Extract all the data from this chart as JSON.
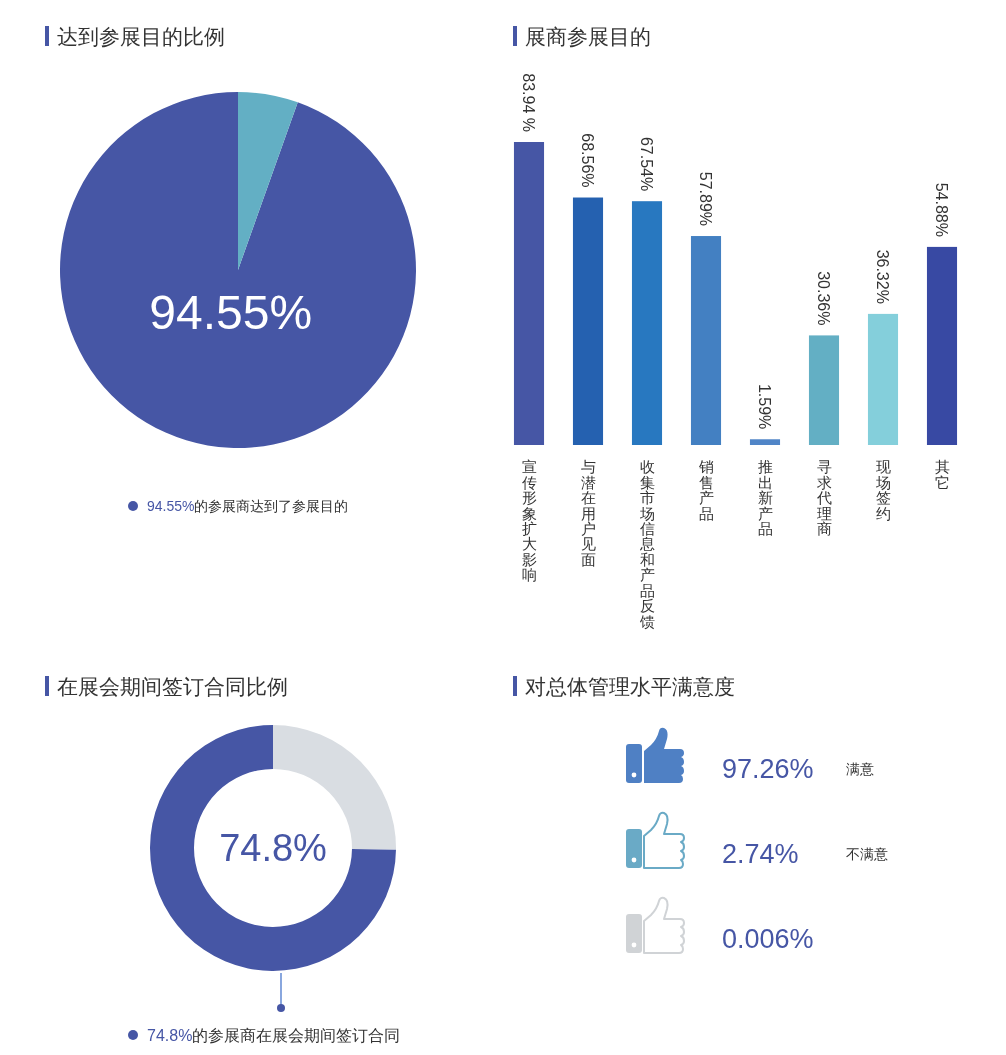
{
  "chart_data": [
    {
      "type": "pie",
      "title": "达到参展目的比例",
      "categories": [
        "94.55%的参展商达到了参展目的",
        null
      ],
      "values": [
        94.55,
        5.45
      ],
      "colors": [
        "#4656a5",
        "#63afc4"
      ],
      "value_labels": [
        "94.55%",
        null
      ],
      "legend": "bottom"
    },
    {
      "type": "bar",
      "title": "展商参展目的",
      "categories": [
        "宣传形象扩大影响",
        "与潜在用户见面",
        "收集市场信息和产品反馈",
        "销售产品",
        "推出新产品",
        "寻求代理商",
        "现场签约",
        "其它"
      ],
      "values": [
        83.94,
        68.56,
        67.54,
        57.89,
        1.59,
        30.36,
        36.32,
        54.88
      ],
      "colors": [
        "#4656a5",
        "#2561b0",
        "#2878c0",
        "#4380c2",
        "#5085c7",
        "#63afc4",
        "#84cfdb",
        "#3849a3"
      ],
      "value_labels": [
        "83.94 %",
        "68.56%",
        "67.54%",
        "57.89%",
        "1.59%",
        "30.36%",
        "36.32%",
        "54.88%"
      ]
    },
    {
      "type": "donut",
      "title": "在展会期间签订合同比例",
      "categories": [
        "74.8%的参展商在展会期间签订合同",
        null
      ],
      "values": [
        74.8,
        25.2
      ],
      "colors": [
        "#4656a5",
        "#d9dde2"
      ],
      "annotations": [
        "74.8%"
      ],
      "legend": "bottom"
    },
    {
      "type": "other",
      "title": "对总体管理水平满意度",
      "annotations": [
        "97.26%",
        "满意",
        "2.74%",
        "不满意",
        "0.006%"
      ],
      "colors": [
        "#4f80c4",
        "#6aaac6",
        "#d0d3d6"
      ]
    }
  ]
}
